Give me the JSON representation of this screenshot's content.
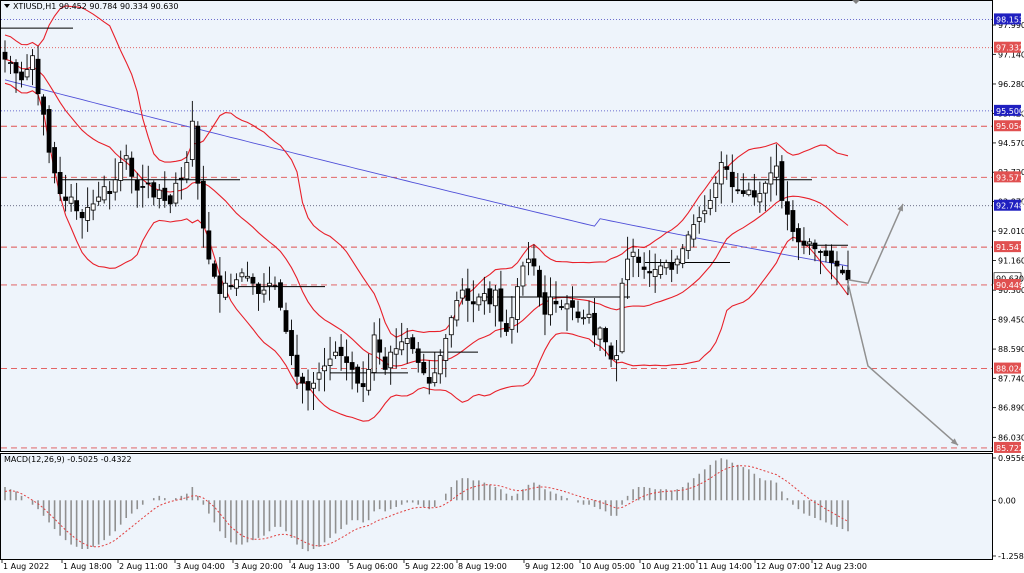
{
  "header": {
    "symbol_info": "XTIUSD,H1  90.452 90.784 90.334 90.630"
  },
  "macd": {
    "label": "MACD(12,26,9) -0.5025 -0.4322"
  },
  "colors": {
    "background": "#EEF4FB",
    "grid": "#c8ccd4",
    "bollinger": "#E8202A",
    "ma": "#5050D8",
    "level_dashed": "#E05050",
    "level_blue": "#4040C0",
    "candle": "#000000",
    "forecast_arrow": "#909090",
    "macd_hist": "#909090",
    "macd_signal": "#E04040"
  },
  "chart_data": {
    "type": "candlestick",
    "title": "",
    "x_tick_labels": [
      "1 Aug 2022",
      "1 Aug 18:00",
      "2 Aug 11:00",
      "3 Aug 04:00",
      "3 Aug 20:00",
      "4 Aug 13:00",
      "5 Aug 06:00",
      "5 Aug 22:00",
      "8 Aug 19:00",
      "9 Aug 12:00",
      "10 Aug 05:00",
      "10 Aug 21:00",
      "11 Aug 14:00",
      "12 Aug 07:00",
      "12 Aug 23:00"
    ],
    "y_tick_labels": [
      "97.990",
      "97.140",
      "96.280",
      "95.420",
      "94.570",
      "93.720",
      "92.870",
      "92.010",
      "91.160",
      "90.300",
      "89.450",
      "88.590",
      "87.740",
      "86.890",
      "86.030"
    ],
    "ylim": [
      85.72,
      98.6
    ],
    "price_labels": [
      {
        "value": "98.153",
        "style": "blue"
      },
      {
        "value": "97.332",
        "style": "red"
      },
      {
        "value": "95.500",
        "style": "blue"
      },
      {
        "value": "95.054",
        "style": "red"
      },
      {
        "value": "93.571",
        "style": "red"
      },
      {
        "value": "92.748",
        "style": "blue"
      },
      {
        "value": "91.547",
        "style": "red"
      },
      {
        "value": "90.630",
        "style": "current"
      },
      {
        "value": "90.449",
        "style": "red"
      },
      {
        "value": "88.024",
        "style": "red"
      },
      {
        "value": "85.722",
        "style": "red"
      }
    ],
    "levels": [
      {
        "y": 98.153,
        "style": "blue-dotted"
      },
      {
        "y": 97.332,
        "style": "red-dotted"
      },
      {
        "y": 95.5,
        "style": "blue-dotted"
      },
      {
        "y": 95.054,
        "style": "red-dashed"
      },
      {
        "y": 93.571,
        "style": "red-dashed"
      },
      {
        "y": 92.748,
        "style": "dark-dotted"
      },
      {
        "y": 91.547,
        "style": "red-dashed"
      },
      {
        "y": 90.449,
        "style": "red-dashed"
      },
      {
        "y": 88.024,
        "style": "red-dashed"
      },
      {
        "y": 85.722,
        "style": "red-dashed"
      }
    ],
    "close_series": [
      97.0,
      96.9,
      96.6,
      96.4,
      96.7,
      97.1,
      96.0,
      95.4,
      94.3,
      93.7,
      93.1,
      92.9,
      93.0,
      92.6,
      92.4,
      92.7,
      92.8,
      93.0,
      93.3,
      93.1,
      93.5,
      94.0,
      94.2,
      93.6,
      93.2,
      93.3,
      93.4,
      93.0,
      93.2,
      92.9,
      92.8,
      93.4,
      93.5,
      94.0,
      95.2,
      93.4,
      92.1,
      91.2,
      90.7,
      90.2,
      90.5,
      90.4,
      90.6,
      90.8,
      90.7,
      90.5,
      90.2,
      90.3,
      90.5,
      90.4,
      89.8,
      89.1,
      88.4,
      87.8,
      87.6,
      87.4,
      87.6,
      87.9,
      88.1,
      88.3,
      88.5,
      88.4,
      88.2,
      88.0,
      87.6,
      87.5,
      88.0,
      89.0,
      88.5,
      88.0,
      88.5,
      88.6,
      88.8,
      88.9,
      88.6,
      88.2,
      87.9,
      87.6,
      87.9,
      88.4,
      88.9,
      89.5,
      90.0,
      90.3,
      90.0,
      89.9,
      90.1,
      90.2,
      89.9,
      90.3,
      89.4,
      89.1,
      89.5,
      90.4,
      91.0,
      91.2,
      91.0,
      90.1,
      89.6,
      90.1,
      89.9,
      89.8,
      89.9,
      89.8,
      89.5,
      89.5,
      89.6,
      89.0,
      89.2,
      88.8,
      88.3,
      88.4,
      90.5,
      91.2,
      91.4,
      91.1,
      90.9,
      90.8,
      90.9,
      91.0,
      91.1,
      90.9,
      91.2,
      91.5,
      91.9,
      92.2,
      92.4,
      92.6,
      92.9,
      93.4,
      94.0,
      93.8,
      93.3,
      93.2,
      93.1,
      93.2,
      93.0,
      93.1,
      93.4,
      93.7,
      93.9,
      92.9,
      92.5,
      92.0,
      91.7,
      91.6,
      91.7,
      91.5,
      91.4,
      91.3,
      91.1,
      91.0,
      90.8,
      90.6
    ],
    "forecast_paths": [
      {
        "name": "",
        "points": [
          [
            0,
            90.6
          ],
          [
            1,
            90.5
          ],
          [
            2,
            92.8
          ]
        ]
      },
      {
        "name": "",
        "points": [
          [
            0,
            90.5
          ],
          [
            1,
            88.1
          ],
          [
            2,
            85.8
          ]
        ]
      }
    ],
    "macd": {
      "ylim": [
        -1.2584,
        0.9556
      ],
      "y_tick_labels": [
        "0.9556",
        "0.00",
        "-1.2584"
      ],
      "histogram": [
        0.3,
        0.25,
        0.2,
        0.1,
        0.0,
        -0.1,
        -0.2,
        -0.35,
        -0.5,
        -0.65,
        -0.8,
        -0.9,
        -1.0,
        -1.05,
        -1.1,
        -1.1,
        -1.05,
        -1.0,
        -0.9,
        -0.8,
        -0.7,
        -0.55,
        -0.4,
        -0.3,
        -0.2,
        -0.1,
        0.0,
        0.05,
        0.1,
        0.05,
        0.0,
        0.05,
        0.1,
        0.15,
        0.3,
        0.1,
        -0.1,
        -0.3,
        -0.5,
        -0.7,
        -0.85,
        -0.95,
        -1.0,
        -1.0,
        -0.95,
        -0.9,
        -0.85,
        -0.8,
        -0.7,
        -0.6,
        -0.6,
        -0.7,
        -0.85,
        -1.0,
        -1.1,
        -1.15,
        -1.1,
        -1.05,
        -0.95,
        -0.85,
        -0.75,
        -0.65,
        -0.55,
        -0.45,
        -0.45,
        -0.5,
        -0.45,
        -0.25,
        -0.2,
        -0.25,
        -0.2,
        -0.15,
        -0.1,
        -0.05,
        -0.05,
        -0.1,
        -0.15,
        -0.2,
        -0.15,
        0.0,
        0.15,
        0.3,
        0.45,
        0.5,
        0.5,
        0.45,
        0.45,
        0.4,
        0.35,
        0.3,
        0.25,
        0.15,
        0.1,
        0.15,
        0.25,
        0.35,
        0.4,
        0.35,
        0.25,
        0.2,
        0.15,
        0.1,
        0.05,
        0.0,
        -0.05,
        -0.1,
        -0.1,
        -0.15,
        -0.2,
        -0.25,
        -0.35,
        -0.35,
        -0.1,
        0.1,
        0.25,
        0.3,
        0.3,
        0.28,
        0.25,
        0.25,
        0.25,
        0.22,
        0.25,
        0.3,
        0.4,
        0.5,
        0.6,
        0.7,
        0.8,
        0.9,
        0.95,
        0.92,
        0.85,
        0.8,
        0.75,
        0.7,
        0.6,
        0.5,
        0.45,
        0.45,
        0.4,
        0.2,
        0.05,
        -0.1,
        -0.2,
        -0.3,
        -0.35,
        -0.4,
        -0.45,
        -0.5,
        -0.55,
        -0.6,
        -0.65,
        -0.7
      ],
      "signal": [
        0.2,
        0.22,
        0.2,
        0.15,
        0.08,
        0.0,
        -0.08,
        -0.18,
        -0.3,
        -0.42,
        -0.55,
        -0.67,
        -0.78,
        -0.88,
        -0.96,
        -1.02,
        -1.05,
        -1.05,
        -1.02,
        -0.97,
        -0.9,
        -0.8,
        -0.7,
        -0.6,
        -0.5,
        -0.4,
        -0.3,
        -0.2,
        -0.12,
        -0.07,
        -0.03,
        0.0,
        0.03,
        0.06,
        0.1,
        0.1,
        0.05,
        -0.05,
        -0.15,
        -0.3,
        -0.45,
        -0.6,
        -0.7,
        -0.8,
        -0.85,
        -0.88,
        -0.88,
        -0.87,
        -0.84,
        -0.8,
        -0.77,
        -0.77,
        -0.8,
        -0.85,
        -0.92,
        -0.98,
        -1.02,
        -1.03,
        -1.02,
        -0.98,
        -0.92,
        -0.85,
        -0.78,
        -0.7,
        -0.64,
        -0.6,
        -0.57,
        -0.5,
        -0.44,
        -0.4,
        -0.35,
        -0.3,
        -0.26,
        -0.22,
        -0.18,
        -0.16,
        -0.16,
        -0.17,
        -0.17,
        -0.14,
        -0.08,
        0.0,
        0.1,
        0.18,
        0.25,
        0.3,
        0.33,
        0.35,
        0.35,
        0.34,
        0.32,
        0.28,
        0.24,
        0.22,
        0.22,
        0.25,
        0.28,
        0.3,
        0.3,
        0.28,
        0.25,
        0.22,
        0.18,
        0.14,
        0.1,
        0.06,
        0.03,
        0.0,
        -0.04,
        -0.08,
        -0.13,
        -0.18,
        -0.16,
        -0.1,
        -0.03,
        0.04,
        0.1,
        0.14,
        0.17,
        0.19,
        0.2,
        0.21,
        0.22,
        0.23,
        0.26,
        0.3,
        0.36,
        0.42,
        0.5,
        0.58,
        0.66,
        0.72,
        0.76,
        0.78,
        0.78,
        0.77,
        0.74,
        0.7,
        0.66,
        0.62,
        0.58,
        0.5,
        0.42,
        0.32,
        0.22,
        0.12,
        0.03,
        -0.05,
        -0.12,
        -0.2,
        -0.27,
        -0.34,
        -0.41,
        -0.48
      ]
    }
  }
}
